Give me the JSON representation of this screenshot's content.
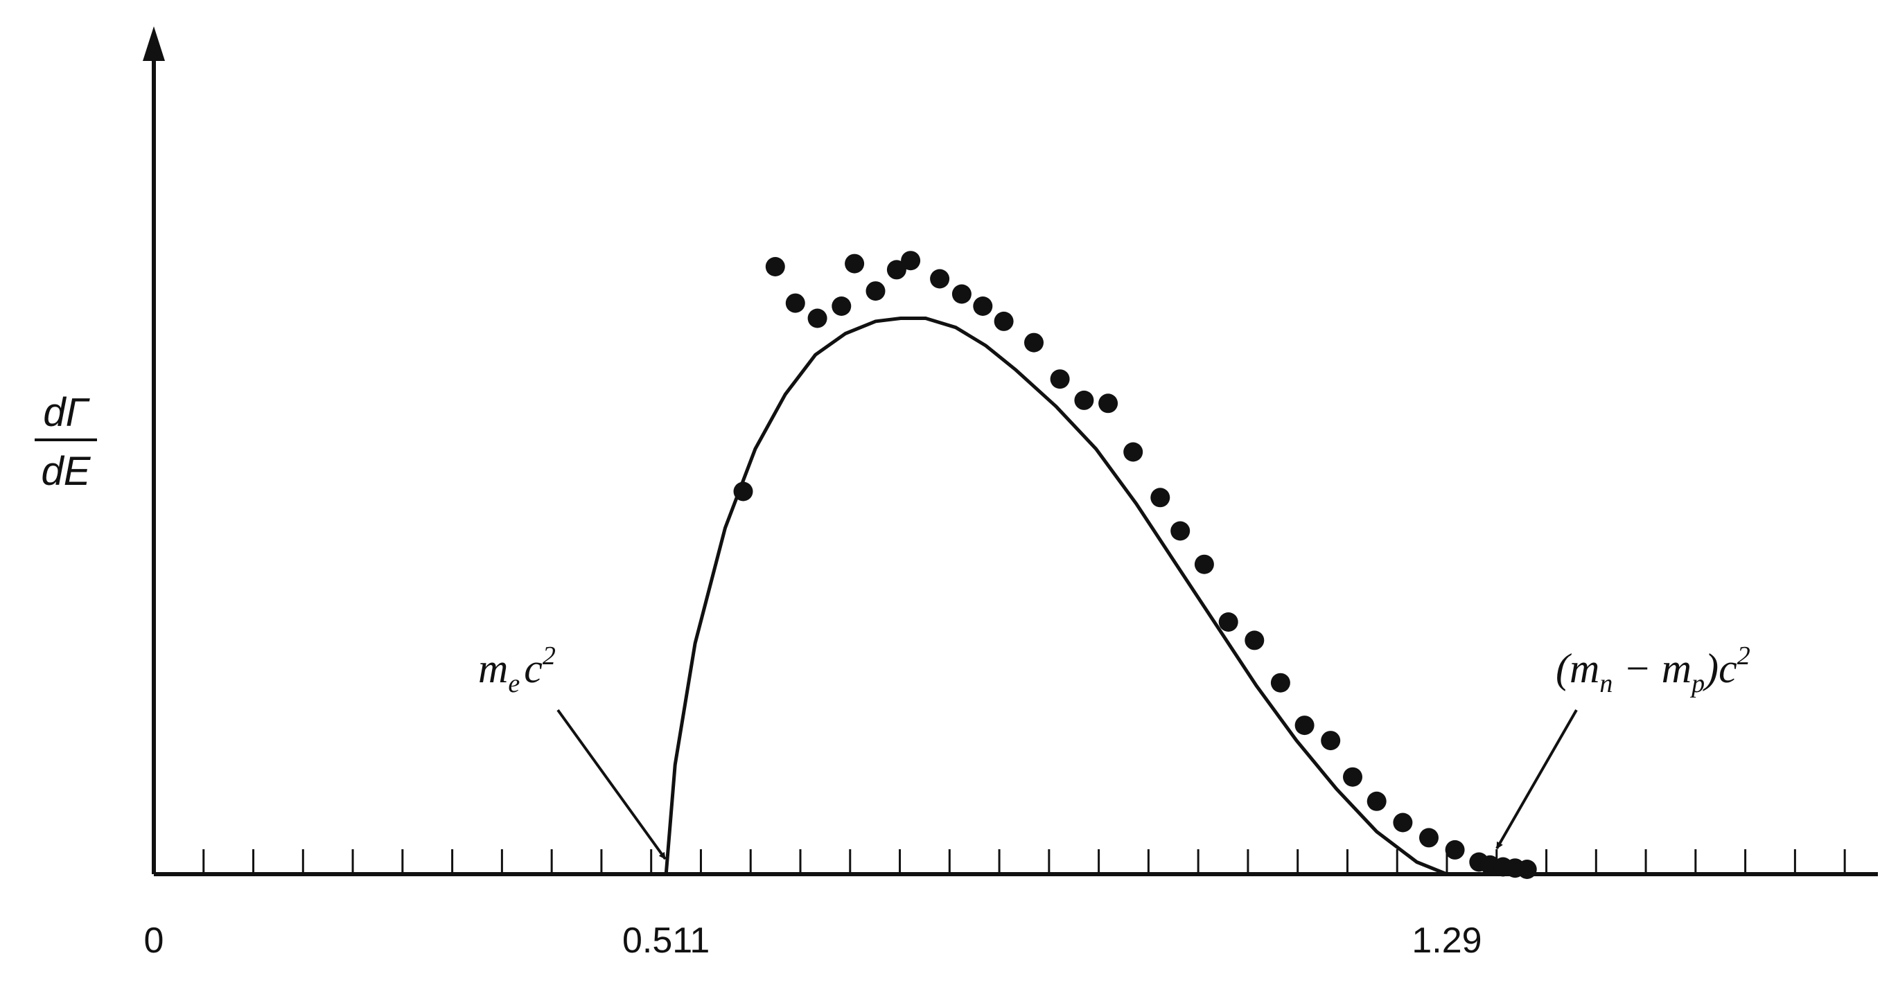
{
  "chart_data": {
    "type": "scatter",
    "xlabel": "",
    "ylabel": {
      "numerator": "dΓ",
      "denominator": "dE"
    },
    "x_ticks": [
      {
        "value": 0,
        "label": "0"
      },
      {
        "value": 0.511,
        "label": "0.511"
      },
      {
        "value": 1.29,
        "label": "1.29"
      }
    ],
    "xlim": [
      0,
      1.72
    ],
    "ylim": [
      0,
      1.0
    ],
    "grid": false,
    "annotations": [
      {
        "base": "m",
        "sub": "e",
        "tail": "c",
        "sup": "2",
        "points_to_x": 0.511
      },
      {
        "prefix": "(m",
        "sub1": "n",
        "middle": " − m",
        "sub2": "p",
        "tail": ")c",
        "sup": "2",
        "points_to_x": 1.29
      }
    ],
    "series": [
      {
        "kind": "curve",
        "x": [
          0.511,
          0.52,
          0.54,
          0.57,
          0.6,
          0.63,
          0.66,
          0.69,
          0.72,
          0.745,
          0.77,
          0.8,
          0.83,
          0.86,
          0.9,
          0.94,
          0.98,
          1.02,
          1.06,
          1.1,
          1.14,
          1.18,
          1.22,
          1.26,
          1.29
        ],
        "y": [
          0.0,
          0.18,
          0.38,
          0.57,
          0.7,
          0.79,
          0.855,
          0.89,
          0.91,
          0.915,
          0.915,
          0.9,
          0.87,
          0.83,
          0.77,
          0.7,
          0.61,
          0.51,
          0.41,
          0.31,
          0.22,
          0.14,
          0.07,
          0.02,
          0.0
        ]
      },
      {
        "kind": "points",
        "x": [
          0.588,
          0.62,
          0.64,
          0.662,
          0.686,
          0.699,
          0.72,
          0.741,
          0.755,
          0.784,
          0.806,
          0.827,
          0.848,
          0.878,
          0.904,
          0.928,
          0.952,
          0.977,
          1.004,
          1.024,
          1.048,
          1.072,
          1.098,
          1.124,
          1.148,
          1.174,
          1.196,
          1.22,
          1.246,
          1.272,
          1.298,
          1.322,
          1.333,
          1.346,
          1.358,
          1.37
        ],
        "y": [
          0.63,
          1.0,
          0.94,
          0.915,
          0.935,
          1.005,
          0.96,
          0.995,
          1.01,
          0.98,
          0.955,
          0.935,
          0.91,
          0.875,
          0.815,
          0.78,
          0.775,
          0.695,
          0.62,
          0.565,
          0.51,
          0.415,
          0.385,
          0.315,
          0.245,
          0.22,
          0.16,
          0.12,
          0.085,
          0.06,
          0.04,
          0.02,
          0.015,
          0.012,
          0.01,
          0.008
        ]
      }
    ]
  }
}
